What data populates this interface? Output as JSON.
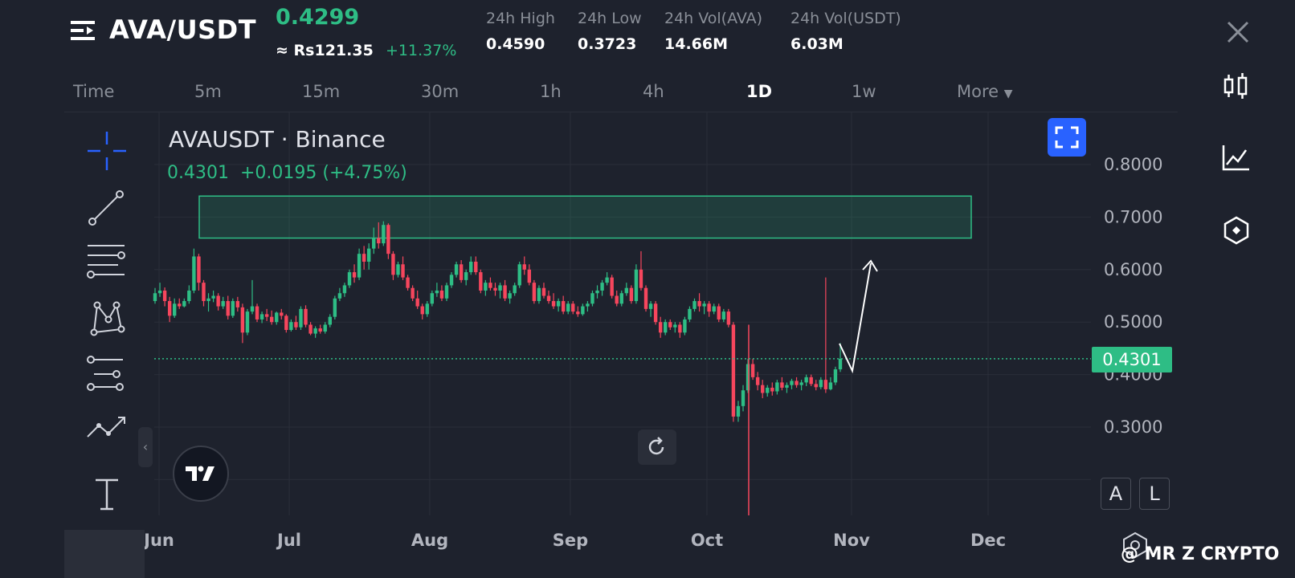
{
  "header": {
    "pair": "AVA/USDT",
    "price": "0.4299",
    "fiat_price": "≈ Rs121.35",
    "change_pct": "+11.37%",
    "stats": [
      {
        "label": "24h High",
        "value": "0.4590"
      },
      {
        "label": "24h Low",
        "value": "0.3723"
      },
      {
        "label": "24h Vol(AVA)",
        "value": "14.66M"
      },
      {
        "label": "24h Vol(USDT)",
        "value": "6.03M"
      }
    ]
  },
  "timeframes": [
    "Time",
    "5m",
    "15m",
    "30m",
    "1h",
    "4h",
    "1D",
    "1w",
    "More"
  ],
  "active_timeframe": "1D",
  "chart": {
    "symbol": "AVAUSDT · Binance",
    "ohlc_line": "0.4301  +0.0195 (+4.75%)",
    "last_price_label": "0.4301",
    "buttons": {
      "auto": "A",
      "log": "L"
    }
  },
  "chart_data": {
    "type": "candlestick",
    "symbol": "AVAUSDT",
    "exchange": "Binance",
    "interval": "1D",
    "y_ticks": [
      "0.8000",
      "0.7000",
      "0.6000",
      "0.5000",
      "0.4000",
      "0.3000"
    ],
    "ylim": [
      0.18,
      0.89
    ],
    "x_ticks": [
      "Jun",
      "Jul",
      "Aug",
      "Sep",
      "Oct",
      "Nov",
      "Dec"
    ],
    "last_price": 0.4301,
    "resistance_zone": {
      "low": 0.66,
      "high": 0.74,
      "from": "2024-06-10",
      "to": "2024-11-25"
    },
    "annotation": "arrow projecting price up from ~0.40 to ~0.62 after Nov",
    "candles": [
      [
        0.54,
        0.565,
        0.535,
        0.555
      ],
      [
        0.555,
        0.575,
        0.548,
        0.56
      ],
      [
        0.56,
        0.566,
        0.53,
        0.54
      ],
      [
        0.54,
        0.548,
        0.5,
        0.512
      ],
      [
        0.512,
        0.545,
        0.508,
        0.535
      ],
      [
        0.535,
        0.545,
        0.525,
        0.53
      ],
      [
        0.53,
        0.545,
        0.528,
        0.54
      ],
      [
        0.54,
        0.57,
        0.535,
        0.56
      ],
      [
        0.56,
        0.64,
        0.555,
        0.625
      ],
      [
        0.625,
        0.63,
        0.56,
        0.575
      ],
      [
        0.575,
        0.58,
        0.53,
        0.54
      ],
      [
        0.54,
        0.555,
        0.52,
        0.545
      ],
      [
        0.545,
        0.56,
        0.538,
        0.55
      ],
      [
        0.55,
        0.555,
        0.522,
        0.53
      ],
      [
        0.53,
        0.548,
        0.525,
        0.54
      ],
      [
        0.54,
        0.55,
        0.505,
        0.512
      ],
      [
        0.512,
        0.545,
        0.508,
        0.54
      ],
      [
        0.54,
        0.548,
        0.52,
        0.528
      ],
      [
        0.528,
        0.535,
        0.46,
        0.48
      ],
      [
        0.48,
        0.525,
        0.475,
        0.52
      ],
      [
        0.52,
        0.58,
        0.515,
        0.53
      ],
      [
        0.53,
        0.535,
        0.5,
        0.505
      ],
      [
        0.505,
        0.52,
        0.498,
        0.515
      ],
      [
        0.515,
        0.525,
        0.502,
        0.51
      ],
      [
        0.51,
        0.522,
        0.495,
        0.5
      ],
      [
        0.5,
        0.52,
        0.495,
        0.518
      ],
      [
        0.518,
        0.525,
        0.505,
        0.512
      ],
      [
        0.512,
        0.515,
        0.48,
        0.485
      ],
      [
        0.485,
        0.505,
        0.482,
        0.5
      ],
      [
        0.5,
        0.512,
        0.485,
        0.49
      ],
      [
        0.49,
        0.53,
        0.485,
        0.525
      ],
      [
        0.525,
        0.532,
        0.49,
        0.495
      ],
      [
        0.495,
        0.5,
        0.475,
        0.478
      ],
      [
        0.478,
        0.492,
        0.47,
        0.488
      ],
      [
        0.488,
        0.495,
        0.478,
        0.482
      ],
      [
        0.482,
        0.5,
        0.478,
        0.495
      ],
      [
        0.495,
        0.515,
        0.49,
        0.51
      ],
      [
        0.51,
        0.55,
        0.505,
        0.545
      ],
      [
        0.545,
        0.565,
        0.54,
        0.555
      ],
      [
        0.555,
        0.575,
        0.548,
        0.57
      ],
      [
        0.57,
        0.6,
        0.565,
        0.595
      ],
      [
        0.595,
        0.61,
        0.575,
        0.585
      ],
      [
        0.585,
        0.64,
        0.58,
        0.63
      ],
      [
        0.63,
        0.645,
        0.6,
        0.615
      ],
      [
        0.615,
        0.65,
        0.6,
        0.64
      ],
      [
        0.64,
        0.68,
        0.63,
        0.66
      ],
      [
        0.66,
        0.69,
        0.64,
        0.65
      ],
      [
        0.65,
        0.692,
        0.645,
        0.685
      ],
      [
        0.685,
        0.688,
        0.62,
        0.63
      ],
      [
        0.63,
        0.635,
        0.58,
        0.59
      ],
      [
        0.59,
        0.615,
        0.585,
        0.61
      ],
      [
        0.61,
        0.625,
        0.58,
        0.585
      ],
      [
        0.585,
        0.59,
        0.56,
        0.565
      ],
      [
        0.565,
        0.57,
        0.54,
        0.545
      ],
      [
        0.545,
        0.56,
        0.525,
        0.53
      ],
      [
        0.53,
        0.535,
        0.505,
        0.515
      ],
      [
        0.515,
        0.54,
        0.51,
        0.535
      ],
      [
        0.535,
        0.56,
        0.53,
        0.555
      ],
      [
        0.555,
        0.575,
        0.548,
        0.56
      ],
      [
        0.56,
        0.57,
        0.54,
        0.545
      ],
      [
        0.545,
        0.575,
        0.54,
        0.57
      ],
      [
        0.57,
        0.595,
        0.565,
        0.59
      ],
      [
        0.59,
        0.615,
        0.585,
        0.61
      ],
      [
        0.61,
        0.618,
        0.575,
        0.58
      ],
      [
        0.58,
        0.6,
        0.57,
        0.595
      ],
      [
        0.595,
        0.625,
        0.59,
        0.615
      ],
      [
        0.615,
        0.625,
        0.59,
        0.595
      ],
      [
        0.595,
        0.6,
        0.555,
        0.56
      ],
      [
        0.56,
        0.58,
        0.55,
        0.575
      ],
      [
        0.575,
        0.585,
        0.56,
        0.565
      ],
      [
        0.565,
        0.575,
        0.55,
        0.56
      ],
      [
        0.56,
        0.575,
        0.545,
        0.57
      ],
      [
        0.57,
        0.58,
        0.54,
        0.545
      ],
      [
        0.545,
        0.56,
        0.535,
        0.555
      ],
      [
        0.555,
        0.575,
        0.55,
        0.57
      ],
      [
        0.57,
        0.615,
        0.565,
        0.61
      ],
      [
        0.61,
        0.625,
        0.59,
        0.6
      ],
      [
        0.6,
        0.61,
        0.57,
        0.575
      ],
      [
        0.575,
        0.58,
        0.535,
        0.54
      ],
      [
        0.54,
        0.57,
        0.535,
        0.565
      ],
      [
        0.565,
        0.575,
        0.545,
        0.55
      ],
      [
        0.55,
        0.56,
        0.535,
        0.54
      ],
      [
        0.54,
        0.555,
        0.525,
        0.53
      ],
      [
        0.53,
        0.545,
        0.52,
        0.54
      ],
      [
        0.54,
        0.55,
        0.515,
        0.52
      ],
      [
        0.52,
        0.54,
        0.515,
        0.535
      ],
      [
        0.535,
        0.54,
        0.515,
        0.52
      ],
      [
        0.52,
        0.53,
        0.51,
        0.515
      ],
      [
        0.515,
        0.535,
        0.512,
        0.53
      ],
      [
        0.53,
        0.54,
        0.52,
        0.535
      ],
      [
        0.535,
        0.56,
        0.53,
        0.555
      ],
      [
        0.555,
        0.57,
        0.545,
        0.56
      ],
      [
        0.56,
        0.58,
        0.55,
        0.575
      ],
      [
        0.575,
        0.595,
        0.57,
        0.585
      ],
      [
        0.585,
        0.59,
        0.545,
        0.55
      ],
      [
        0.55,
        0.56,
        0.53,
        0.535
      ],
      [
        0.535,
        0.56,
        0.53,
        0.555
      ],
      [
        0.555,
        0.575,
        0.55,
        0.565
      ],
      [
        0.565,
        0.57,
        0.535,
        0.54
      ],
      [
        0.54,
        0.61,
        0.535,
        0.6
      ],
      [
        0.6,
        0.635,
        0.56,
        0.565
      ],
      [
        0.565,
        0.57,
        0.52,
        0.525
      ],
      [
        0.525,
        0.54,
        0.51,
        0.535
      ],
      [
        0.535,
        0.54,
        0.495,
        0.5
      ],
      [
        0.5,
        0.51,
        0.47,
        0.48
      ],
      [
        0.48,
        0.505,
        0.475,
        0.5
      ],
      [
        0.5,
        0.505,
        0.485,
        0.49
      ],
      [
        0.49,
        0.5,
        0.48,
        0.495
      ],
      [
        0.495,
        0.5,
        0.47,
        0.48
      ],
      [
        0.48,
        0.51,
        0.475,
        0.505
      ],
      [
        0.505,
        0.53,
        0.5,
        0.525
      ],
      [
        0.525,
        0.545,
        0.52,
        0.54
      ],
      [
        0.54,
        0.555,
        0.52,
        0.53
      ],
      [
        0.53,
        0.54,
        0.515,
        0.535
      ],
      [
        0.535,
        0.54,
        0.51,
        0.52
      ],
      [
        0.52,
        0.535,
        0.515,
        0.53
      ],
      [
        0.53,
        0.535,
        0.5,
        0.505
      ],
      [
        0.505,
        0.525,
        0.5,
        0.52
      ],
      [
        0.52,
        0.525,
        0.49,
        0.495
      ],
      [
        0.495,
        0.5,
        0.31,
        0.32
      ],
      [
        0.32,
        0.35,
        0.31,
        0.34
      ],
      [
        0.34,
        0.38,
        0.33,
        0.37
      ],
      [
        0.37,
        0.43,
        0.365,
        0.42
      ],
      [
        0.42,
        0.43,
        0.39,
        0.395
      ],
      [
        0.395,
        0.405,
        0.37,
        0.38
      ],
      [
        0.38,
        0.39,
        0.355,
        0.365
      ],
      [
        0.365,
        0.38,
        0.358,
        0.375
      ],
      [
        0.375,
        0.385,
        0.36,
        0.368
      ],
      [
        0.368,
        0.39,
        0.362,
        0.385
      ],
      [
        0.385,
        0.395,
        0.37,
        0.375
      ],
      [
        0.375,
        0.385,
        0.365,
        0.38
      ],
      [
        0.38,
        0.392,
        0.372,
        0.388
      ],
      [
        0.388,
        0.395,
        0.375,
        0.38
      ],
      [
        0.38,
        0.39,
        0.37,
        0.385
      ],
      [
        0.385,
        0.4,
        0.378,
        0.395
      ],
      [
        0.395,
        0.4,
        0.378,
        0.382
      ],
      [
        0.382,
        0.39,
        0.37,
        0.376
      ],
      [
        0.376,
        0.395,
        0.372,
        0.39
      ],
      [
        0.39,
        0.585,
        0.365,
        0.372
      ],
      [
        0.372,
        0.395,
        0.37,
        0.385
      ],
      [
        0.385,
        0.415,
        0.38,
        0.41
      ],
      [
        0.41,
        0.46,
        0.405,
        0.43
      ]
    ]
  },
  "icons": {
    "menu": "menu-lines-icon",
    "close": "close-icon",
    "fullscreen": "fullscreen-icon",
    "reset": "reset-icon",
    "logo": "tradingview-logo"
  },
  "colors": {
    "bg": "#1e222d",
    "up": "#2ebd85",
    "down": "#f6465d",
    "zone": "#2ebd85"
  },
  "watermark": "@ MR Z CRYPTO"
}
